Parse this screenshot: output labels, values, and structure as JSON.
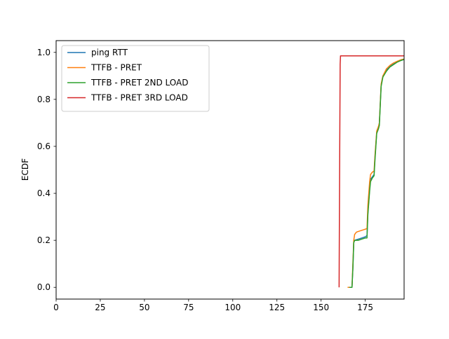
{
  "chart_data": {
    "type": "line",
    "title": "",
    "xlabel": "",
    "ylabel": "ECDF",
    "xlim": [
      0,
      197
    ],
    "ylim": [
      -0.05,
      1.05
    ],
    "xticks": [
      0,
      25,
      50,
      75,
      100,
      125,
      150,
      175
    ],
    "xtick_labels": [
      "0",
      "25",
      "50",
      "75",
      "100",
      "125",
      "150",
      "175"
    ],
    "yticks": [
      0.0,
      0.2,
      0.4,
      0.6,
      0.8,
      1.0
    ],
    "ytick_labels": [
      "0.0",
      "0.2",
      "0.4",
      "0.6",
      "0.8",
      "1.0"
    ],
    "grid": false,
    "legend_position": "upper-left",
    "series": [
      {
        "name": "ping RTT",
        "color": "#1f77b4",
        "points": [
          [
            166.5,
            0.0
          ],
          [
            167.5,
            0.0
          ],
          [
            168.0,
            0.08
          ],
          [
            168.5,
            0.19
          ],
          [
            169.0,
            0.2
          ],
          [
            171.0,
            0.205
          ],
          [
            173.0,
            0.21
          ],
          [
            175.0,
            0.215
          ],
          [
            176.0,
            0.22
          ],
          [
            176.5,
            0.32
          ],
          [
            177.5,
            0.42
          ],
          [
            178.0,
            0.46
          ],
          [
            179.0,
            0.47
          ],
          [
            180.0,
            0.48
          ],
          [
            180.5,
            0.55
          ],
          [
            181.5,
            0.66
          ],
          [
            182.5,
            0.68
          ],
          [
            183.0,
            0.7
          ],
          [
            184.0,
            0.86
          ],
          [
            185.0,
            0.9
          ],
          [
            187.0,
            0.925
          ],
          [
            189.0,
            0.94
          ],
          [
            191.0,
            0.95
          ],
          [
            193.0,
            0.96
          ],
          [
            195.0,
            0.965
          ],
          [
            197.0,
            0.97
          ]
        ]
      },
      {
        "name": "TTFB - PRET",
        "color": "#ff7f0e",
        "points": [
          [
            165.0,
            0.0
          ],
          [
            166.5,
            0.0
          ],
          [
            167.5,
            0.0
          ],
          [
            168.0,
            0.1
          ],
          [
            168.5,
            0.2
          ],
          [
            169.0,
            0.225
          ],
          [
            170.0,
            0.235
          ],
          [
            172.0,
            0.24
          ],
          [
            174.0,
            0.245
          ],
          [
            176.0,
            0.25
          ],
          [
            176.5,
            0.35
          ],
          [
            177.5,
            0.45
          ],
          [
            178.0,
            0.48
          ],
          [
            179.0,
            0.49
          ],
          [
            180.0,
            0.495
          ],
          [
            180.5,
            0.56
          ],
          [
            181.5,
            0.665
          ],
          [
            182.5,
            0.685
          ],
          [
            183.0,
            0.7
          ],
          [
            184.0,
            0.865
          ],
          [
            185.0,
            0.9
          ],
          [
            187.0,
            0.93
          ],
          [
            189.0,
            0.945
          ],
          [
            191.0,
            0.955
          ],
          [
            193.0,
            0.962
          ],
          [
            195.0,
            0.968
          ],
          [
            197.0,
            0.972
          ]
        ]
      },
      {
        "name": "TTFB - PRET 2ND LOAD",
        "color": "#2ca02c",
        "points": [
          [
            166.0,
            0.0
          ],
          [
            167.5,
            0.0
          ],
          [
            168.0,
            0.08
          ],
          [
            168.5,
            0.19
          ],
          [
            169.0,
            0.2
          ],
          [
            171.0,
            0.2
          ],
          [
            173.0,
            0.205
          ],
          [
            175.0,
            0.21
          ],
          [
            176.0,
            0.21
          ],
          [
            176.5,
            0.31
          ],
          [
            177.5,
            0.41
          ],
          [
            178.0,
            0.45
          ],
          [
            179.0,
            0.465
          ],
          [
            180.0,
            0.475
          ],
          [
            180.5,
            0.54
          ],
          [
            181.5,
            0.655
          ],
          [
            182.5,
            0.675
          ],
          [
            183.0,
            0.69
          ],
          [
            184.0,
            0.855
          ],
          [
            185.0,
            0.895
          ],
          [
            187.0,
            0.92
          ],
          [
            189.0,
            0.938
          ],
          [
            191.0,
            0.948
          ],
          [
            193.0,
            0.958
          ],
          [
            195.0,
            0.965
          ],
          [
            197.0,
            0.97
          ]
        ]
      },
      {
        "name": "TTFB - PRET 3RD LOAD",
        "color": "#d62728",
        "points": [
          [
            160.2,
            0.0
          ],
          [
            160.5,
            0.5
          ],
          [
            160.8,
            0.95
          ],
          [
            161.0,
            0.985
          ],
          [
            197.0,
            0.985
          ]
        ]
      }
    ]
  }
}
